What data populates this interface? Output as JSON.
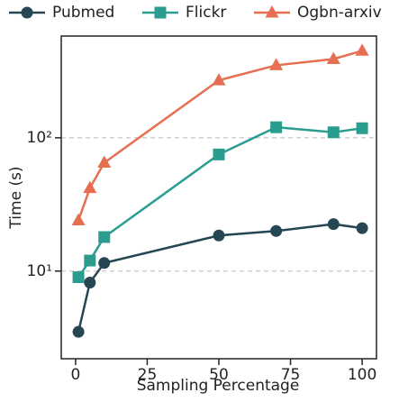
{
  "chart_data": {
    "type": "line",
    "x_label": "Sampling Percentage",
    "y_label": "Time (s)",
    "x": [
      1,
      5,
      10,
      50,
      70,
      90,
      100
    ],
    "series": [
      {
        "name": "Pubmed",
        "color": "#264653",
        "marker": "circle",
        "values": [
          3.5,
          8.2,
          11.5,
          18.5,
          20,
          22.5,
          21
        ]
      },
      {
        "name": "Flickr",
        "color": "#2a9d8f",
        "marker": "square",
        "values": [
          9,
          12,
          18,
          75,
          120,
          110,
          118
        ]
      },
      {
        "name": "Ogbn-arxiv",
        "color": "#e76f51",
        "marker": "triangle",
        "values": [
          24,
          42,
          65,
          270,
          350,
          390,
          450
        ]
      }
    ],
    "xlim": [
      -5,
      105
    ],
    "xticks": [
      0,
      25,
      50,
      75,
      100
    ],
    "ylim": [
      2.2,
      580
    ],
    "yticks": [
      {
        "value": 10,
        "label": "10¹"
      },
      {
        "value": 100,
        "label": "10²"
      }
    ],
    "log_y": true,
    "grid": true,
    "legend": "top"
  }
}
